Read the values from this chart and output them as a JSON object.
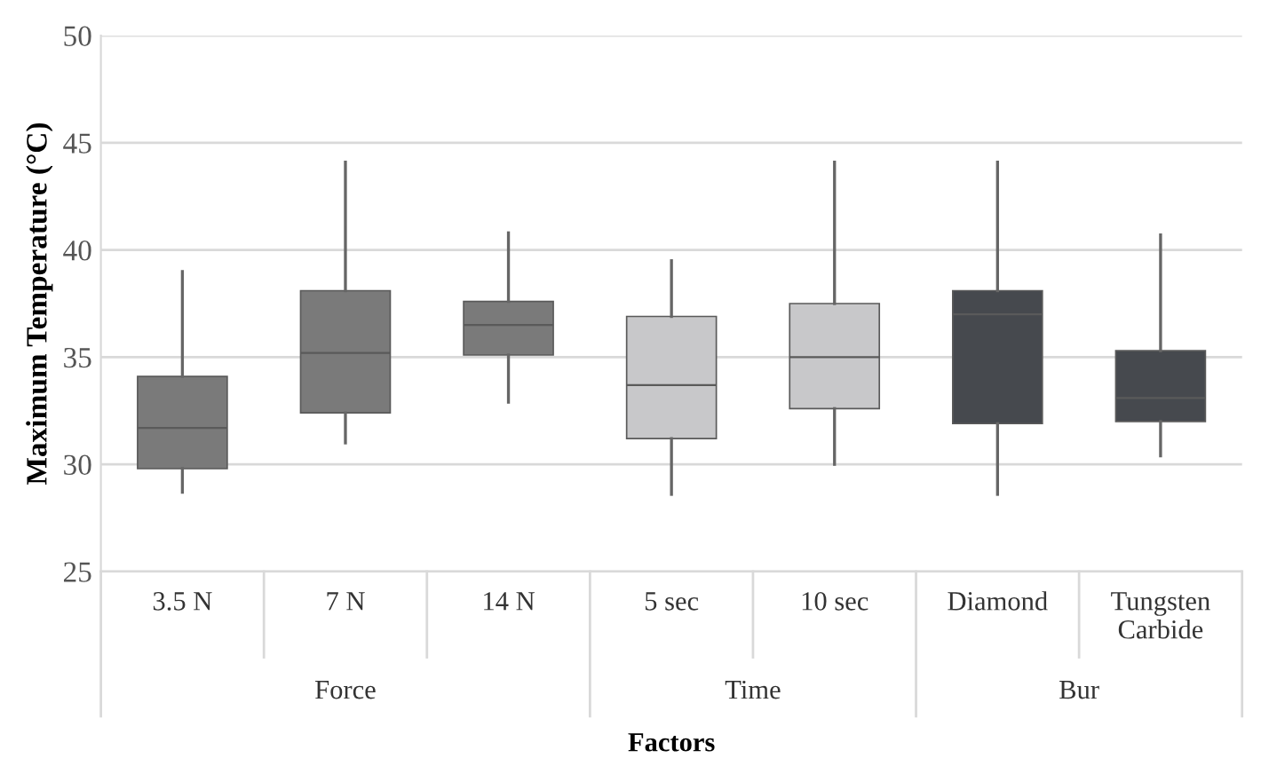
{
  "chart_data": {
    "type": "box",
    "xlabel": "Factors",
    "ylabel": "Maximum Temperature (°C)",
    "categories": [
      "3.5 N",
      "7 N",
      "14 N",
      "5 sec",
      "10 sec",
      "Diamond",
      "Tungsten\nCarbide"
    ],
    "boxes": [
      {
        "low": 28.7,
        "q1": 29.8,
        "median": 31.7,
        "q3": 34.1,
        "high": 39
      },
      {
        "low": 31,
        "q1": 32.4,
        "median": 35.2,
        "q3": 38.1,
        "high": 44.1
      },
      {
        "low": 32.9,
        "q1": 35.1,
        "median": 36.5,
        "q3": 37.6,
        "high": 40.8
      },
      {
        "low": 28.6,
        "q1": 31.2,
        "median": 33.7,
        "q3": 36.9,
        "high": 39.5
      },
      {
        "low": 30,
        "q1": 32.6,
        "median": 35,
        "q3": 37.5,
        "high": 44.1
      },
      {
        "low": 28.6,
        "q1": 31.9,
        "median": 37,
        "q3": 38.1,
        "high": 44.1
      },
      {
        "low": 30.4,
        "q1": 32,
        "median": 33.1,
        "q3": 35.3,
        "high": 40.7
      }
    ],
    "colors": [
      "#7a7a7a",
      "#7a7a7a",
      "#7a7a7a",
      "#c8c8ca",
      "#c8c8ca",
      "#46494e",
      "#46494e"
    ],
    "annotations": [
      "Force",
      "Time",
      "Bur"
    ],
    "ylim": [
      25,
      50
    ],
    "yticks": [
      25,
      30,
      35,
      40,
      45,
      50
    ],
    "grid": "y"
  }
}
